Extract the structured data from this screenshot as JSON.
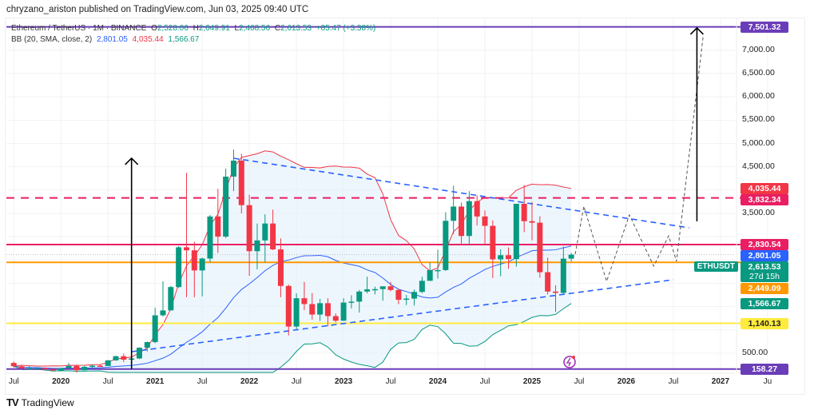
{
  "header": {
    "published": "chryzano_ariston published on TradingView.com, Jun 03, 2025 09:40 UTC"
  },
  "legend": {
    "symbol": "Ethereum / TetherUS · 1M · BINANCE",
    "open_label": "O",
    "open": "2,528.06",
    "high_label": "H",
    "high": "2,649.91",
    "low_label": "L",
    "low": "2,468.56",
    "close_label": "C",
    "close": "2,613.53",
    "change": "+85.47 (+3.38%)",
    "bb_label": "BB (20, SMA, close, 2)",
    "bb_basis": "2,801.05",
    "bb_upper": "4,035.44",
    "bb_lower": "1,566.67"
  },
  "logo": {
    "text": "TradingView"
  },
  "chart_data": {
    "type": "candlestick",
    "symbol_tag": "ETHUSDT",
    "countdown": "27d 15h",
    "ylim": [
      0,
      7700
    ],
    "y_scale": "linear",
    "y_ticks": [
      "500.00",
      "3,500.00",
      "4,500.00",
      "5,000.00",
      "5,500.00",
      "6,000.00",
      "6,500.00",
      "7,000.00"
    ],
    "y_tick_values": [
      500,
      3500,
      4500,
      5000,
      5500,
      6000,
      6500,
      7000
    ],
    "x_ticks": [
      {
        "label": "Jul",
        "date": "2019-07"
      },
      {
        "label": "2020",
        "date": "2020-01"
      },
      {
        "label": "Jul",
        "date": "2020-07"
      },
      {
        "label": "2021",
        "date": "2021-01"
      },
      {
        "label": "Jul",
        "date": "2021-07"
      },
      {
        "label": "2022",
        "date": "2022-01"
      },
      {
        "label": "Jul",
        "date": "2022-07"
      },
      {
        "label": "2023",
        "date": "2023-01"
      },
      {
        "label": "Jul",
        "date": "2023-07"
      },
      {
        "label": "2024",
        "date": "2024-01"
      },
      {
        "label": "Jul",
        "date": "2024-07"
      },
      {
        "label": "2025",
        "date": "2025-01"
      },
      {
        "label": "Jul",
        "date": "2025-07"
      },
      {
        "label": "2026",
        "date": "2026-01"
      },
      {
        "label": "Jul",
        "date": "2026-07"
      },
      {
        "label": "2027",
        "date": "2027-01"
      },
      {
        "label": "Ju",
        "date": "2027-07"
      }
    ],
    "grid": true,
    "colors": {
      "up": "#089981",
      "down": "#f23645",
      "bb_basis": "#2962ff",
      "bb_upper": "#f23645",
      "bb_lower": "#089981",
      "bb_fill": "#e3f0fb"
    },
    "candles": [
      [
        "2019-07",
        290,
        318,
        190,
        218
      ],
      [
        "2019-08",
        218,
        238,
        162,
        172
      ],
      [
        "2019-09",
        172,
        223,
        152,
        180
      ],
      [
        "2019-10",
        180,
        198,
        155,
        182
      ],
      [
        "2019-11",
        182,
        193,
        139,
        151
      ],
      [
        "2019-12",
        151,
        154,
        117,
        129
      ],
      [
        "2020-01",
        129,
        185,
        127,
        179
      ],
      [
        "2020-02",
        179,
        288,
        178,
        226
      ],
      [
        "2020-03",
        226,
        253,
        86,
        133
      ],
      [
        "2020-04",
        133,
        227,
        130,
        206
      ],
      [
        "2020-05",
        206,
        246,
        178,
        231
      ],
      [
        "2020-06",
        231,
        253,
        215,
        225
      ],
      [
        "2020-07",
        225,
        350,
        224,
        345
      ],
      [
        "2020-08",
        345,
        445,
        335,
        434
      ],
      [
        "2020-09",
        434,
        488,
        308,
        360
      ],
      [
        "2020-10",
        360,
        420,
        335,
        386
      ],
      [
        "2020-11",
        386,
        622,
        374,
        616
      ],
      [
        "2020-12",
        616,
        750,
        535,
        737
      ],
      [
        "2021-01",
        737,
        1475,
        714,
        1312
      ],
      [
        "2021-02",
        1312,
        2041,
        1285,
        1417
      ],
      [
        "2021-03",
        1417,
        1943,
        1436,
        1918
      ],
      [
        "2021-04",
        1918,
        2797,
        1900,
        2772
      ],
      [
        "2021-05",
        2772,
        4372,
        1700,
        2707
      ],
      [
        "2021-06",
        2707,
        2891,
        1700,
        2275
      ],
      [
        "2021-07",
        2275,
        2551,
        1718,
        2530
      ],
      [
        "2021-08",
        2530,
        3466,
        2450,
        3433
      ],
      [
        "2021-09",
        3433,
        4027,
        2651,
        3001
      ],
      [
        "2021-10",
        3001,
        4460,
        2970,
        4288
      ],
      [
        "2021-11",
        4288,
        4868,
        3978,
        4631
      ],
      [
        "2021-12",
        4631,
        4778,
        3500,
        3676
      ],
      [
        "2022-01",
        3676,
        3900,
        2159,
        2688
      ],
      [
        "2022-02",
        2688,
        3282,
        2300,
        2919
      ],
      [
        "2022-03",
        2919,
        3480,
        2450,
        3282
      ],
      [
        "2022-04",
        3282,
        3580,
        2712,
        2727
      ],
      [
        "2022-05",
        2727,
        2965,
        1700,
        1942
      ],
      [
        "2022-06",
        1942,
        1972,
        880,
        1071
      ],
      [
        "2022-07",
        1071,
        1785,
        1002,
        1678
      ],
      [
        "2022-08",
        1678,
        2030,
        1422,
        1553
      ],
      [
        "2022-09",
        1553,
        1790,
        1220,
        1328
      ],
      [
        "2022-10",
        1328,
        1663,
        1190,
        1572
      ],
      [
        "2022-11",
        1572,
        1678,
        1073,
        1295
      ],
      [
        "2022-12",
        1295,
        1352,
        1160,
        1196
      ],
      [
        "2023-01",
        1196,
        1680,
        1190,
        1585
      ],
      [
        "2023-02",
        1585,
        1742,
        1460,
        1605
      ],
      [
        "2023-03",
        1605,
        1857,
        1370,
        1822
      ],
      [
        "2023-04",
        1822,
        2141,
        1785,
        1869
      ],
      [
        "2023-05",
        1869,
        1928,
        1761,
        1874
      ],
      [
        "2023-06",
        1874,
        1930,
        1626,
        1934
      ],
      [
        "2023-07",
        1934,
        2028,
        1828,
        1856
      ],
      [
        "2023-08",
        1856,
        1880,
        1550,
        1645
      ],
      [
        "2023-09",
        1645,
        1750,
        1531,
        1671
      ],
      [
        "2023-10",
        1671,
        1865,
        1521,
        1814
      ],
      [
        "2023-11",
        1814,
        2140,
        1785,
        2052
      ],
      [
        "2023-12",
        2052,
        2444,
        2050,
        2282
      ],
      [
        "2024-01",
        2282,
        2718,
        2100,
        2283
      ],
      [
        "2024-02",
        2283,
        3522,
        2262,
        3340
      ],
      [
        "2024-03",
        3340,
        4093,
        3056,
        3646
      ],
      [
        "2024-04",
        3646,
        3730,
        2810,
        3015
      ],
      [
        "2024-05",
        3015,
        3977,
        2817,
        3762
      ],
      [
        "2024-06",
        3762,
        3887,
        3240,
        3433
      ],
      [
        "2024-07",
        3433,
        3563,
        2811,
        3232
      ],
      [
        "2024-08",
        3232,
        3350,
        2111,
        2513
      ],
      [
        "2024-09",
        2513,
        2728,
        2150,
        2602
      ],
      [
        "2024-10",
        2602,
        2769,
        2310,
        2518
      ],
      [
        "2024-11",
        2518,
        3682,
        2357,
        3705
      ],
      [
        "2024-12",
        3705,
        4107,
        3099,
        3332
      ],
      [
        "2025-01",
        3332,
        3745,
        2920,
        3300
      ],
      [
        "2025-02",
        3300,
        3438,
        2120,
        2237
      ],
      [
        "2025-03",
        2237,
        2550,
        1760,
        1822
      ],
      [
        "2025-04",
        1822,
        1957,
        1385,
        1793
      ],
      [
        "2025-05",
        1793,
        2788,
        1750,
        2528
      ],
      [
        "2025-06",
        2528.06,
        2649.91,
        2468.56,
        2613.53
      ]
    ],
    "bollinger": {
      "period": 20,
      "mult": 2,
      "last_basis": 2801.05,
      "last_upper": 4035.44,
      "last_lower": 1566.67
    },
    "horizontal_levels": [
      {
        "price": 7501.32,
        "label": "7,501.32",
        "color": "#6a3db8",
        "style": "solid"
      },
      {
        "price": 3832.34,
        "label": "3,832.34",
        "color": "#e91e63",
        "style": "dashed"
      },
      {
        "price": 2830.54,
        "label": "2,830.54",
        "color": "#e91e63",
        "style": "solid"
      },
      {
        "price": 2449.09,
        "label": "2,449.09",
        "color": "#ff9800",
        "style": "solid"
      },
      {
        "price": 1140.13,
        "label": "1,140.13",
        "color": "#ffeb3b",
        "style": "solid"
      },
      {
        "price": 158.27,
        "label": "158.27",
        "color": "#6a3db8",
        "style": "solid"
      }
    ],
    "price_badges": [
      {
        "price": 4035.44,
        "label": "4,035.44",
        "color": "#f23645"
      },
      {
        "price": 2801.05,
        "label": "2,801.05",
        "color": "#2962ff"
      },
      {
        "price": 2613.53,
        "label": "2,613.53",
        "color": "#089981"
      },
      {
        "price": 1566.67,
        "label": "1,566.67",
        "color": "#089981"
      }
    ],
    "trendlines": [
      {
        "from": [
          "2021-11",
          4683
        ],
        "to": [
          "2026-09",
          3190
        ],
        "color": "#2962ff",
        "style": "dashed"
      },
      {
        "from": [
          "2020-10",
          530
        ],
        "to": [
          "2026-07",
          2075
        ],
        "color": "#2962ff",
        "style": "dashed"
      }
    ],
    "arrows": [
      {
        "date": "2020-10",
        "from": 158,
        "to": 4683,
        "color": "#000000"
      },
      {
        "date": "2026-10",
        "from": 3330,
        "to": 7480,
        "color": "#000000"
      }
    ],
    "projection": [
      [
        "2025-06-16",
        2624
      ],
      [
        "2025-07-19",
        3654
      ],
      [
        "2025-10-16",
        2041
      ],
      [
        "2026-01-13",
        3465
      ],
      [
        "2026-04-16",
        2367
      ],
      [
        "2026-06-13",
        3019
      ],
      [
        "2026-07-13",
        2470
      ],
      [
        "2026-10-25",
        7307
      ]
    ]
  }
}
